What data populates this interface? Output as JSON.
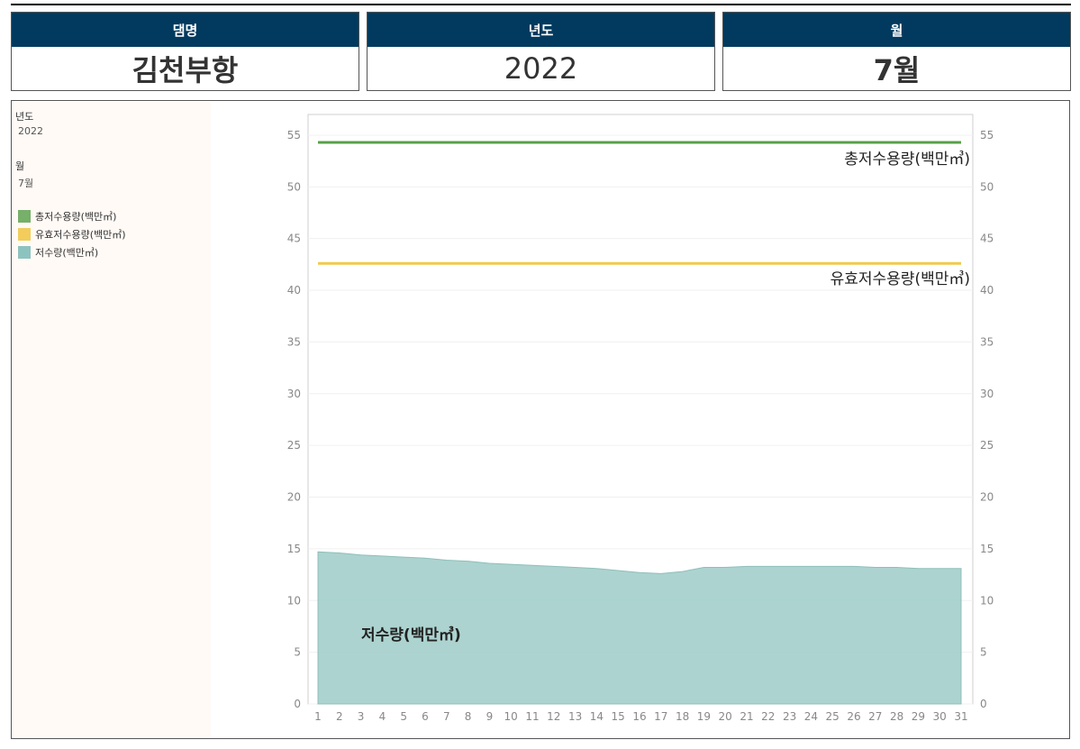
{
  "header": {
    "dam_label": "댐명",
    "dam_value": "김천부항",
    "year_label": "년도",
    "year_value": "2022",
    "month_label": "월",
    "month_value": "7월"
  },
  "sidebar": {
    "year_label": "년도",
    "year_value": "2022",
    "month_label": "월",
    "month_value": "7월",
    "legend": [
      {
        "label": "총저수용량(백만㎥)",
        "color": "#76b06a"
      },
      {
        "label": "유효저수용량(백만㎥)",
        "color": "#f2cd5c"
      },
      {
        "label": "저수량(백만㎥)",
        "color": "#8dc3bf"
      }
    ]
  },
  "chart_data": {
    "type": "area",
    "x": [
      1,
      2,
      3,
      4,
      5,
      6,
      7,
      8,
      9,
      10,
      11,
      12,
      13,
      14,
      15,
      16,
      17,
      18,
      19,
      20,
      21,
      22,
      23,
      24,
      25,
      26,
      27,
      28,
      29,
      30,
      31
    ],
    "ylim": [
      0,
      57
    ],
    "yticks": [
      0,
      5,
      10,
      15,
      20,
      25,
      30,
      35,
      40,
      45,
      50,
      55
    ],
    "series": [
      {
        "name": "총저수용량(백만㎥)",
        "kind": "line",
        "color": "#57a046",
        "values": [
          54.3,
          54.3,
          54.3,
          54.3,
          54.3,
          54.3,
          54.3,
          54.3,
          54.3,
          54.3,
          54.3,
          54.3,
          54.3,
          54.3,
          54.3,
          54.3,
          54.3,
          54.3,
          54.3,
          54.3,
          54.3,
          54.3,
          54.3,
          54.3,
          54.3,
          54.3,
          54.3,
          54.3,
          54.3,
          54.3,
          54.3
        ]
      },
      {
        "name": "유효저수용량(백만㎥)",
        "kind": "line",
        "color": "#f2c94c",
        "values": [
          42.6,
          42.6,
          42.6,
          42.6,
          42.6,
          42.6,
          42.6,
          42.6,
          42.6,
          42.6,
          42.6,
          42.6,
          42.6,
          42.6,
          42.6,
          42.6,
          42.6,
          42.6,
          42.6,
          42.6,
          42.6,
          42.6,
          42.6,
          42.6,
          42.6,
          42.6,
          42.6,
          42.6,
          42.6,
          42.6,
          42.6
        ]
      },
      {
        "name": "저수량(백만㎥)",
        "kind": "area",
        "color": "#9ecbc7",
        "values": [
          14.7,
          14.6,
          14.4,
          14.3,
          14.2,
          14.1,
          13.9,
          13.8,
          13.6,
          13.5,
          13.4,
          13.3,
          13.2,
          13.1,
          12.9,
          12.7,
          12.6,
          12.8,
          13.2,
          13.2,
          13.3,
          13.3,
          13.3,
          13.3,
          13.3,
          13.3,
          13.2,
          13.2,
          13.1,
          13.1,
          13.1
        ]
      }
    ]
  }
}
